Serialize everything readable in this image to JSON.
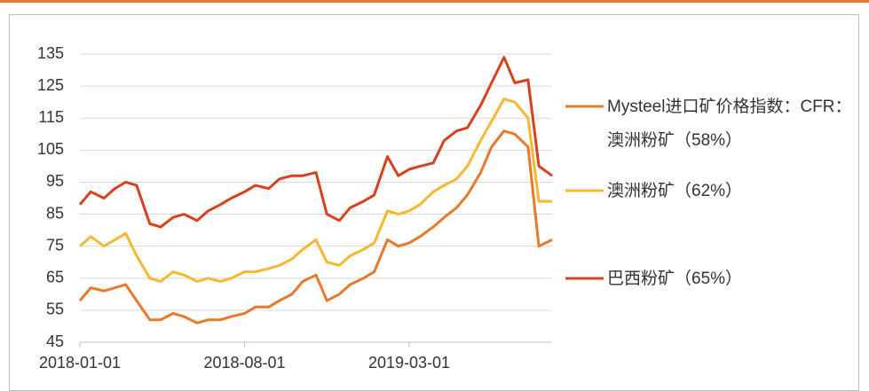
{
  "chart_data": {
    "type": "line",
    "x": [
      "2018-01-01",
      "2018-01-15",
      "2018-02-01",
      "2018-02-15",
      "2018-03-01",
      "2018-03-15",
      "2018-04-01",
      "2018-04-15",
      "2018-05-01",
      "2018-05-15",
      "2018-06-01",
      "2018-06-15",
      "2018-07-01",
      "2018-07-15",
      "2018-08-01",
      "2018-08-15",
      "2018-09-01",
      "2018-09-15",
      "2018-10-01",
      "2018-10-15",
      "2018-11-01",
      "2018-11-15",
      "2018-12-01",
      "2018-12-15",
      "2019-01-01",
      "2019-01-15",
      "2019-02-01",
      "2019-02-15",
      "2019-03-01",
      "2019-03-15",
      "2019-04-01",
      "2019-04-15",
      "2019-05-01",
      "2019-05-15",
      "2019-06-01",
      "2019-06-15",
      "2019-07-01",
      "2019-07-15",
      "2019-08-01",
      "2019-08-15",
      "2019-09-01"
    ],
    "series": [
      {
        "name": "Mysteel进口矿价格指数：CFR：澳洲粉矿（58%）",
        "color": "#e8792a",
        "values": [
          58,
          62,
          61,
          62,
          63,
          58,
          52,
          52,
          54,
          53,
          51,
          52,
          52,
          53,
          54,
          56,
          56,
          58,
          60,
          64,
          66,
          58,
          60,
          63,
          65,
          67,
          77,
          75,
          76,
          78,
          81,
          84,
          87,
          91,
          98,
          106,
          111,
          110,
          106,
          75,
          77
        ]
      },
      {
        "name": "澳洲粉矿（62%）",
        "color": "#f7b731",
        "values": [
          75,
          78,
          75,
          77,
          79,
          72,
          65,
          64,
          67,
          66,
          64,
          65,
          64,
          65,
          67,
          67,
          68,
          69,
          71,
          74,
          77,
          70,
          69,
          72,
          74,
          76,
          86,
          85,
          86,
          88,
          92,
          94,
          96,
          100,
          108,
          114,
          121,
          120,
          115,
          89,
          89
        ]
      },
      {
        "name": "巴西粉矿（65%）",
        "color": "#d9401c",
        "values": [
          88,
          92,
          90,
          93,
          95,
          94,
          82,
          81,
          84,
          85,
          83,
          86,
          88,
          90,
          92,
          94,
          93,
          96,
          97,
          97,
          98,
          85,
          83,
          87,
          89,
          91,
          103,
          97,
          99,
          100,
          101,
          108,
          111,
          112,
          119,
          126,
          134,
          126,
          127,
          100,
          97
        ]
      }
    ],
    "xlim": [
      "2018-01-01",
      "2019-09-01"
    ],
    "xticks": [
      "2018-01-01",
      "2018-08-01",
      "2019-03-01"
    ],
    "ylim": [
      45,
      135
    ],
    "yticks": [
      45,
      55,
      65,
      75,
      85,
      95,
      105,
      115,
      125,
      135
    ],
    "grid": true
  }
}
